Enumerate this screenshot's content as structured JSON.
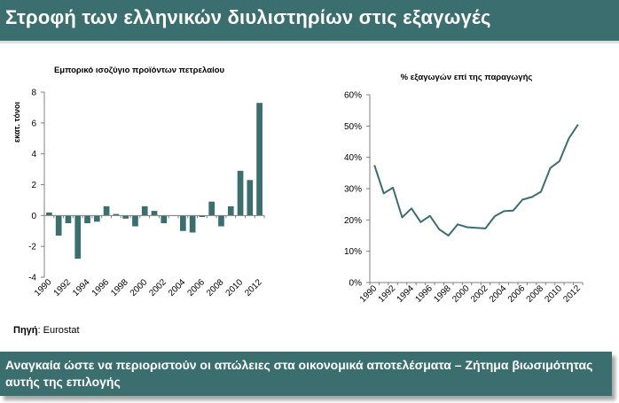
{
  "header": {
    "title": "Στροφή των ελληνικών διυλιστηρίων στις εξαγωγές"
  },
  "source": {
    "label": "Πηγή",
    "text": ": Eurostat"
  },
  "footer": {
    "text": "Αναγκαία ώστε να περιοριστούν οι απώλειες στα οικονομικά αποτελέσματα – Ζήτημα βιωσιμότητας αυτής της επιλογής"
  },
  "colors": {
    "accent": "#3b6e6e",
    "bar": "#3b6e6e",
    "line": "#3b6e6e"
  },
  "chart_data": [
    {
      "type": "bar",
      "title": "Εμπορικό ισοζύγιο προϊόντων πετρελαίου",
      "ylabel": "εκατ. τόνοι",
      "xlabel": "",
      "x": [
        1990,
        1991,
        1992,
        1993,
        1994,
        1995,
        1996,
        1997,
        1998,
        1999,
        2000,
        2001,
        2002,
        2003,
        2004,
        2005,
        2006,
        2007,
        2008,
        2009,
        2010,
        2011,
        2012
      ],
      "values": [
        0.2,
        -1.3,
        -0.5,
        -2.8,
        -0.5,
        -0.4,
        0.6,
        0.1,
        -0.2,
        -0.7,
        0.6,
        0.3,
        -0.5,
        0.0,
        -1.0,
        -1.1,
        -0.1,
        0.9,
        -0.7,
        0.6,
        2.9,
        2.3,
        7.3
      ],
      "ylim": [
        -4,
        8
      ],
      "yticks": [
        "-4",
        "-2",
        "0",
        "2",
        "4",
        "6",
        "8"
      ],
      "xticks": [
        "1990",
        "1992",
        "1994",
        "1996",
        "1998",
        "2000",
        "2002",
        "2004",
        "2006",
        "2008",
        "2010",
        "2012"
      ],
      "grid": false
    },
    {
      "type": "line",
      "title": "% εξαγωγών επί της παραγωγής",
      "xlabel": "",
      "ylabel": "",
      "x": [
        1990,
        1991,
        1992,
        1993,
        1994,
        1995,
        1996,
        1997,
        1998,
        1999,
        2000,
        2001,
        2002,
        2003,
        2004,
        2005,
        2006,
        2007,
        2008,
        2009,
        2010,
        2011,
        2012
      ],
      "values": [
        37.5,
        28.5,
        30.3,
        20.8,
        23.7,
        19.3,
        21.3,
        17.0,
        15.0,
        18.6,
        17.7,
        17.5,
        17.3,
        21.2,
        22.8,
        23.0,
        26.5,
        27.3,
        29.0,
        36.6,
        38.8,
        46.0,
        50.5
      ],
      "ylim": [
        0,
        60
      ],
      "yticks": [
        "0%",
        "10%",
        "20%",
        "30%",
        "40%",
        "50%",
        "60%"
      ],
      "xticks": [
        "1990",
        "1992",
        "1994",
        "1996",
        "1998",
        "2000",
        "2002",
        "2004",
        "2006",
        "2008",
        "2010",
        "2012"
      ],
      "grid": false
    }
  ]
}
